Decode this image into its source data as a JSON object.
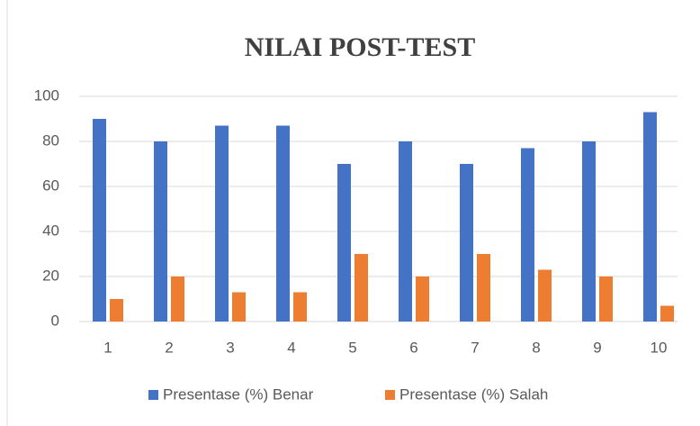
{
  "chart_data": {
    "type": "bar",
    "title": "NILAI POST-TEST",
    "categories": [
      "1",
      "2",
      "3",
      "4",
      "5",
      "6",
      "7",
      "8",
      "9",
      "10"
    ],
    "series": [
      {
        "name": "Presentase (%) Benar",
        "color": "#4472c4",
        "values": [
          90,
          80,
          87,
          87,
          70,
          80,
          70,
          77,
          80,
          93
        ]
      },
      {
        "name": "Presentase (%) Salah",
        "color": "#ed7d31",
        "values": [
          10,
          20,
          13,
          13,
          30,
          20,
          30,
          23,
          20,
          7
        ]
      }
    ],
    "ylim": [
      0,
      100
    ],
    "yticks": [
      0,
      20,
      40,
      60,
      80,
      100
    ],
    "grid": true,
    "legend": "bottom"
  }
}
